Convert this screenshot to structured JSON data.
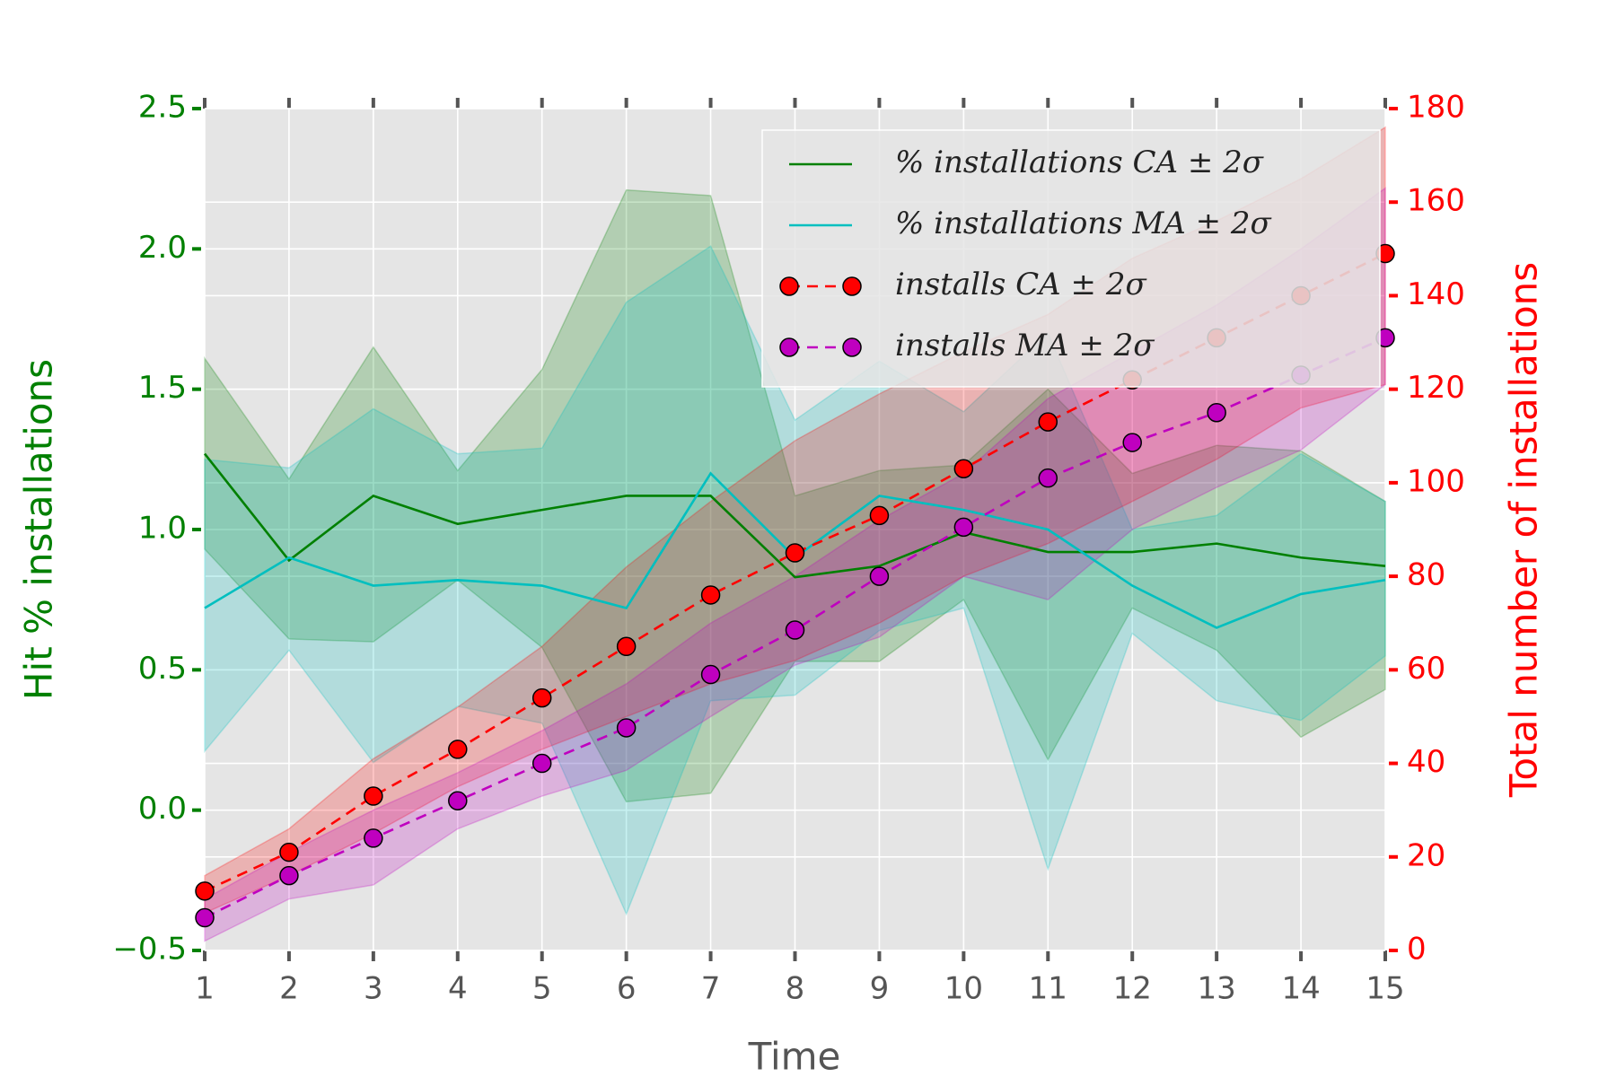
{
  "chart_data": {
    "type": "line",
    "xlabel": "Time",
    "ylabel": "Hit % installations",
    "y2label": "Total number of installations",
    "x": [
      1,
      2,
      3,
      4,
      5,
      6,
      7,
      8,
      9,
      10,
      11,
      12,
      13,
      14,
      15
    ],
    "xlim": [
      1,
      15
    ],
    "xticks": [
      1,
      2,
      3,
      4,
      5,
      6,
      7,
      8,
      9,
      10,
      11,
      12,
      13,
      14,
      15
    ],
    "ylim": [
      -0.5,
      2.5
    ],
    "yticks": [
      {
        "value": -0.5,
        "label": "−0.5"
      },
      {
        "value": 0,
        "label": "0.0"
      },
      0.5,
      {
        "value": 1,
        "label": "1.0"
      },
      1.5,
      {
        "value": 2,
        "label": "2.0"
      },
      2.5
    ],
    "y2lim": [
      0,
      180
    ],
    "y2ticks": [
      0,
      20,
      40,
      60,
      80,
      100,
      120,
      140,
      160,
      180
    ],
    "grid": true,
    "legend": "upper right",
    "ycolor": "#008000",
    "y2color": "#ff0000",
    "series": [
      {
        "name": "% installations CA ± 2σ",
        "color": "#008000",
        "axis": "y",
        "marker": false,
        "dashed": false,
        "values": [
          1.27,
          0.89,
          1.12,
          1.02,
          1.07,
          1.12,
          1.12,
          0.83,
          0.87,
          0.99,
          0.92,
          0.92,
          0.95,
          0.9,
          0.87
        ],
        "upper": [
          1.61,
          1.18,
          1.65,
          1.21,
          1.57,
          2.21,
          2.19,
          1.12,
          1.21,
          1.23,
          1.5,
          1.2,
          1.3,
          1.28,
          1.1
        ],
        "lower": [
          0.93,
          0.61,
          0.6,
          0.82,
          0.58,
          0.03,
          0.06,
          0.53,
          0.53,
          0.75,
          0.18,
          0.72,
          0.57,
          0.26,
          0.43
        ]
      },
      {
        "name": "% installations MA ± 2σ",
        "color": "#00bfbf",
        "axis": "y",
        "marker": false,
        "dashed": false,
        "values": [
          0.72,
          0.9,
          0.8,
          0.82,
          0.8,
          0.72,
          1.2,
          0.9,
          1.12,
          1.07,
          1.0,
          0.8,
          0.65,
          0.77,
          0.82
        ],
        "upper": [
          1.25,
          1.22,
          1.43,
          1.27,
          1.29,
          1.81,
          2.01,
          1.39,
          1.6,
          1.42,
          1.7,
          1.0,
          1.05,
          1.27,
          1.1
        ],
        "lower": [
          0.21,
          0.57,
          0.17,
          0.37,
          0.31,
          -0.37,
          0.39,
          0.41,
          0.64,
          0.72,
          -0.21,
          0.63,
          0.39,
          0.32,
          0.55
        ]
      },
      {
        "name": "installs CA ± 2σ",
        "color": "#ff0000",
        "axis": "y2",
        "marker": true,
        "dashed": true,
        "values": [
          12.7,
          21,
          33,
          43,
          54,
          65,
          76,
          85,
          93,
          103,
          113,
          122,
          131,
          140,
          149
        ],
        "upper": [
          16,
          26,
          41,
          52,
          65,
          82,
          96,
          109,
          119,
          128,
          136,
          148,
          156,
          165,
          176
        ],
        "lower": [
          8,
          16,
          25,
          35,
          43,
          50,
          57,
          62,
          70,
          80,
          87,
          96,
          105,
          116,
          121
        ]
      },
      {
        "name": "installs MA ± 2σ",
        "color": "#bf00bf",
        "axis": "y2",
        "marker": true,
        "dashed": true,
        "values": [
          7,
          16,
          24,
          32,
          40,
          47.6,
          59,
          68.5,
          80,
          90.5,
          101,
          108.6,
          115,
          123,
          131
        ],
        "upper": [
          11,
          21,
          30,
          38,
          47,
          57,
          70,
          80,
          92,
          102,
          118,
          128,
          138,
          150,
          163
        ],
        "lower": [
          2,
          11,
          14,
          26,
          33,
          38.5,
          50,
          61,
          67,
          80,
          75,
          90,
          99,
          107,
          121
        ]
      }
    ]
  }
}
